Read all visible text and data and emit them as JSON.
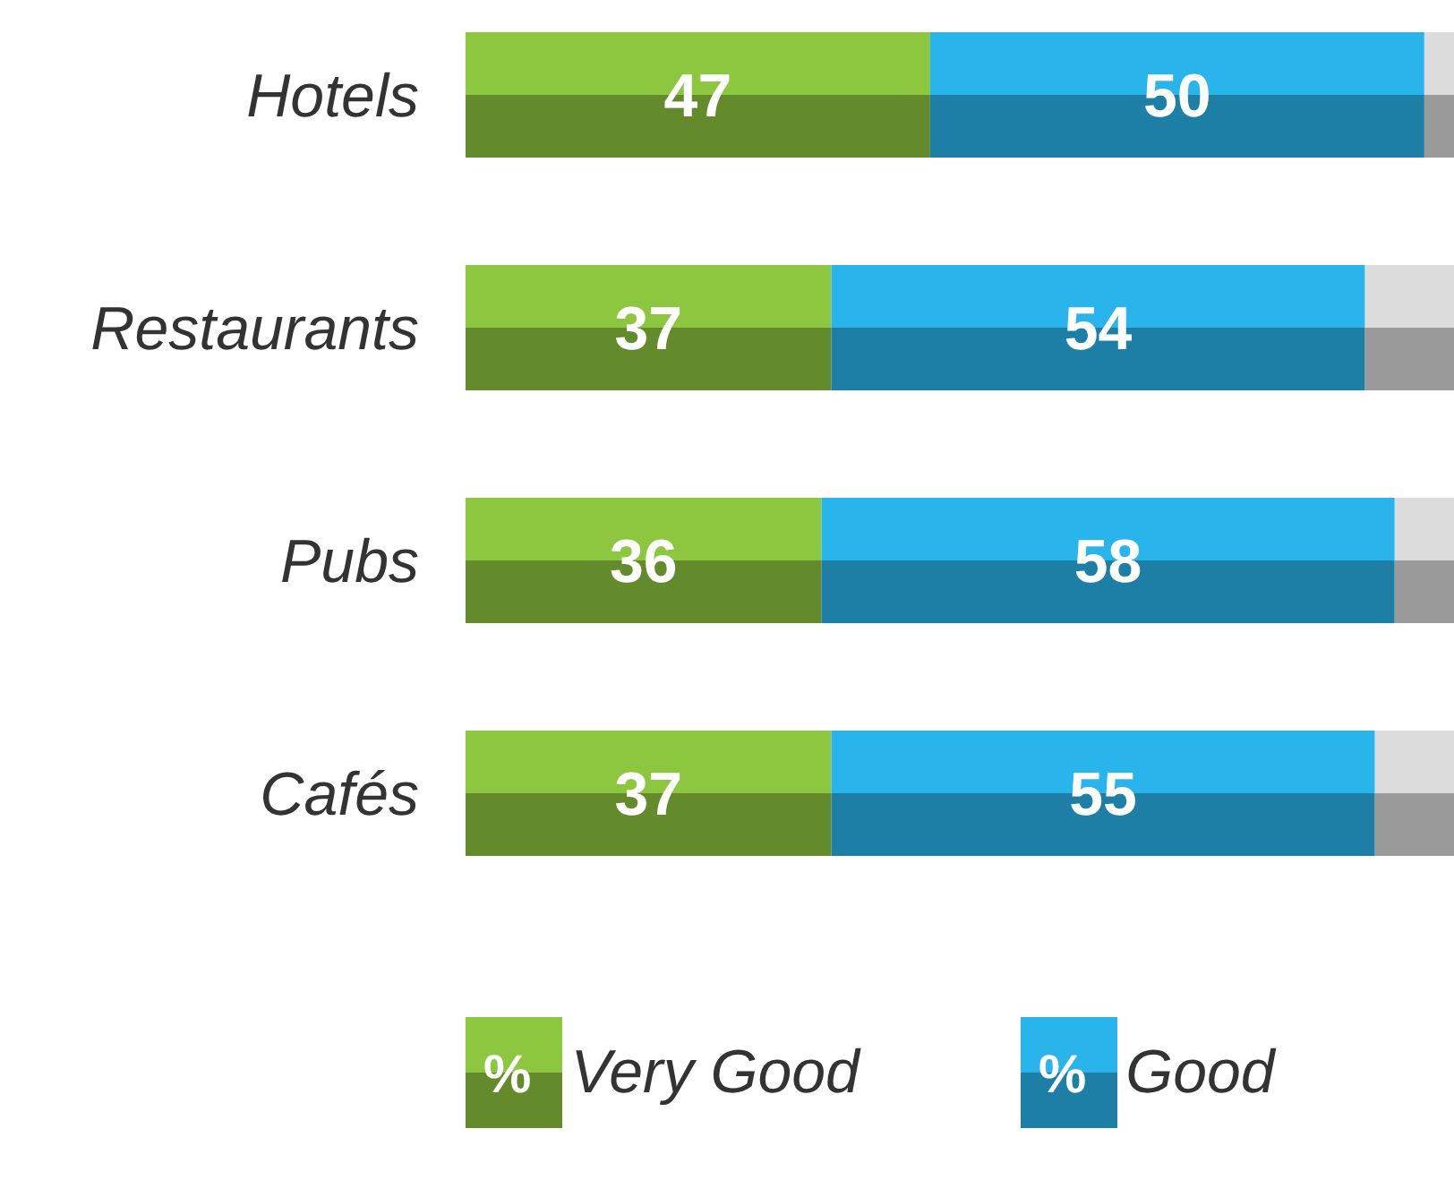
{
  "chart_data": {
    "type": "bar",
    "orientation": "horizontal",
    "stacked": true,
    "categories": [
      "Hotels",
      "Restaurants",
      "Pubs",
      "Cafés"
    ],
    "xlim": [
      0,
      100
    ],
    "tick_labels": false,
    "legend": "bottom",
    "grid": false,
    "series": [
      {
        "name": "% Very Good",
        "color": "#8dc63f",
        "values": [
          47,
          37,
          36,
          37
        ],
        "value_labels": [
          "47",
          "37",
          "36",
          "37"
        ]
      },
      {
        "name": "% Good",
        "color": "#29b5ec",
        "values": [
          50,
          54,
          58,
          55
        ],
        "value_labels": [
          "50",
          "54",
          "58",
          "55"
        ]
      },
      {
        "color": "#dcdcdc",
        "values": [
          3,
          9,
          6,
          8
        ]
      }
    ]
  }
}
